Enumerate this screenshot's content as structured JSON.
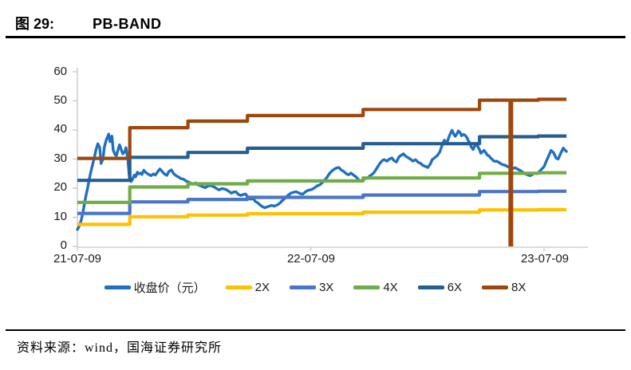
{
  "header": {
    "figure_label": "图 29:",
    "title": "PB-BAND"
  },
  "source": {
    "text": "资料来源：wind，国海证券研究所"
  },
  "chart_data": {
    "type": "line",
    "title": "PB-BAND",
    "grid": false,
    "legend_position": "bottom",
    "x_axis": {
      "unit": "days_since_first_tick",
      "tick_labels": [
        "21-07-09",
        "22-07-09",
        "23-07-09"
      ],
      "tick_days": [
        0,
        365,
        730
      ],
      "range_days": [
        0,
        799
      ]
    },
    "y_axis": {
      "ticks": [
        0,
        10,
        20,
        30,
        40,
        50,
        60
      ],
      "range": [
        0,
        60
      ]
    },
    "series": [
      {
        "name": "收盘价（元）",
        "color": "#1F70C1",
        "width": 3.4,
        "points": [
          [
            0,
            5.8
          ],
          [
            3,
            7.0
          ],
          [
            6,
            9.0
          ],
          [
            9,
            12.0
          ],
          [
            13,
            17.0
          ],
          [
            16,
            20.0
          ],
          [
            19,
            23.5
          ],
          [
            22,
            26.5
          ],
          [
            26,
            30.0
          ],
          [
            29,
            33.0
          ],
          [
            32,
            35.3
          ],
          [
            35,
            34.0
          ],
          [
            37,
            28.5
          ],
          [
            40,
            30.0
          ],
          [
            42,
            34.0
          ],
          [
            45,
            36.5
          ],
          [
            49,
            38.6
          ],
          [
            51,
            36.0
          ],
          [
            54,
            37.9
          ],
          [
            56,
            33.1
          ],
          [
            59,
            31.5
          ],
          [
            61,
            31.2
          ],
          [
            64,
            33.5
          ],
          [
            66,
            34.9
          ],
          [
            69,
            33.0
          ],
          [
            71,
            31.8
          ],
          [
            74,
            32.5
          ],
          [
            76,
            33.9
          ],
          [
            79,
            29.9
          ],
          [
            81,
            24.5
          ],
          [
            84,
            22.3
          ],
          [
            86,
            22.9
          ],
          [
            89,
            24.5
          ],
          [
            91,
            23.9
          ],
          [
            94,
            25.5
          ],
          [
            96,
            24.9
          ],
          [
            99,
            25.2
          ],
          [
            101,
            24.7
          ],
          [
            104,
            26.2
          ],
          [
            107,
            25.4
          ],
          [
            111,
            24.8
          ],
          [
            115,
            24.3
          ],
          [
            119,
            24.9
          ],
          [
            122,
            24.5
          ],
          [
            126,
            25.8
          ],
          [
            129,
            26.6
          ],
          [
            132,
            25.9
          ],
          [
            136,
            24.9
          ],
          [
            140,
            24.4
          ],
          [
            143,
            25.7
          ],
          [
            147,
            26.3
          ],
          [
            151,
            24.9
          ],
          [
            155,
            24.2
          ],
          [
            158,
            23.9
          ],
          [
            162,
            23.3
          ],
          [
            166,
            23.1
          ],
          [
            170,
            22.5
          ],
          [
            173,
            22.2
          ],
          [
            177,
            21.8
          ],
          [
            181,
            21.4
          ],
          [
            185,
            21.8
          ],
          [
            188,
            21.2
          ],
          [
            192,
            20.9
          ],
          [
            196,
            20.5
          ],
          [
            200,
            20.2
          ],
          [
            203,
            20.6
          ],
          [
            207,
            20.9
          ],
          [
            211,
            20.7
          ],
          [
            215,
            20.3
          ],
          [
            218,
            19.8
          ],
          [
            222,
            19.4
          ],
          [
            226,
            19.9
          ],
          [
            230,
            19.7
          ],
          [
            233,
            19.5
          ],
          [
            237,
            18.9
          ],
          [
            241,
            18.3
          ],
          [
            245,
            18.7
          ],
          [
            248,
            18.8
          ],
          [
            252,
            17.8
          ],
          [
            256,
            17.5
          ],
          [
            260,
            17.9
          ],
          [
            263,
            18.0
          ],
          [
            267,
            16.8
          ],
          [
            271,
            16.2
          ],
          [
            275,
            16.6
          ],
          [
            278,
            15.5
          ],
          [
            282,
            15.0
          ],
          [
            286,
            14.2
          ],
          [
            290,
            13.6
          ],
          [
            293,
            13.3
          ],
          [
            297,
            13.6
          ],
          [
            301,
            13.9
          ],
          [
            304,
            14.1
          ],
          [
            308,
            13.8
          ],
          [
            312,
            14.2
          ],
          [
            316,
            14.7
          ],
          [
            319,
            15.4
          ],
          [
            323,
            16.2
          ],
          [
            327,
            17.1
          ],
          [
            331,
            17.8
          ],
          [
            334,
            18.3
          ],
          [
            338,
            18.6
          ],
          [
            342,
            18.8
          ],
          [
            346,
            18.4
          ],
          [
            349,
            18.1
          ],
          [
            353,
            18.0
          ],
          [
            357,
            18.8
          ],
          [
            361,
            19.3
          ],
          [
            364,
            19.4
          ],
          [
            368,
            19.7
          ],
          [
            372,
            20.3
          ],
          [
            376,
            20.9
          ],
          [
            379,
            21.1
          ],
          [
            383,
            21.9
          ],
          [
            387,
            22.8
          ],
          [
            391,
            23.9
          ],
          [
            394,
            25.0
          ],
          [
            398,
            25.9
          ],
          [
            402,
            26.6
          ],
          [
            406,
            27.0
          ],
          [
            409,
            27.1
          ],
          [
            413,
            26.2
          ],
          [
            417,
            25.7
          ],
          [
            421,
            24.9
          ],
          [
            424,
            24.6
          ],
          [
            428,
            25.2
          ],
          [
            432,
            24.5
          ],
          [
            436,
            23.9
          ],
          [
            439,
            23.1
          ],
          [
            443,
            22.4
          ],
          [
            447,
            23.0
          ],
          [
            450,
            23.3
          ],
          [
            454,
            23.5
          ],
          [
            458,
            24.3
          ],
          [
            462,
            24.9
          ],
          [
            465,
            25.7
          ],
          [
            469,
            27.1
          ],
          [
            473,
            28.5
          ],
          [
            477,
            29.5
          ],
          [
            480,
            29.8
          ],
          [
            484,
            29.3
          ],
          [
            488,
            30.0
          ],
          [
            492,
            30.4
          ],
          [
            495,
            29.5
          ],
          [
            499,
            29.0
          ],
          [
            503,
            30.7
          ],
          [
            507,
            31.4
          ],
          [
            510,
            31.8
          ],
          [
            514,
            30.9
          ],
          [
            518,
            30.4
          ],
          [
            522,
            29.8
          ],
          [
            525,
            29.3
          ],
          [
            529,
            29.8
          ],
          [
            533,
            28.9
          ],
          [
            537,
            28.5
          ],
          [
            540,
            27.9
          ],
          [
            544,
            27.5
          ],
          [
            548,
            27.1
          ],
          [
            552,
            28.3
          ],
          [
            555,
            29.8
          ],
          [
            559,
            30.5
          ],
          [
            563,
            31.2
          ],
          [
            567,
            32.5
          ],
          [
            570,
            34.5
          ],
          [
            574,
            36.5
          ],
          [
            578,
            35.5
          ],
          [
            581,
            37.5
          ],
          [
            584,
            39.0
          ],
          [
            586,
            39.9
          ],
          [
            589,
            38.5
          ],
          [
            591,
            37.8
          ],
          [
            594,
            38.8
          ],
          [
            596,
            39.7
          ],
          [
            599,
            39.0
          ],
          [
            601,
            38.0
          ],
          [
            604,
            38.5
          ],
          [
            606,
            38.3
          ],
          [
            609,
            37.5
          ],
          [
            611,
            36.5
          ],
          [
            614,
            35.5
          ],
          [
            616,
            34.2
          ],
          [
            619,
            33.3
          ],
          [
            621,
            34.3
          ],
          [
            624,
            35.1
          ],
          [
            626,
            34.5
          ],
          [
            629,
            33.2
          ],
          [
            631,
            32.0
          ],
          [
            634,
            32.6
          ],
          [
            636,
            33.0
          ],
          [
            639,
            32.2
          ],
          [
            641,
            31.4
          ],
          [
            644,
            31.1
          ],
          [
            646,
            30.5
          ],
          [
            649,
            29.9
          ],
          [
            651,
            29.4
          ],
          [
            654,
            29.2
          ],
          [
            656,
            29.3
          ],
          [
            659,
            28.9
          ],
          [
            664,
            28.2
          ],
          [
            669,
            27.9
          ],
          [
            674,
            27.3
          ],
          [
            678,
            27.1
          ],
          [
            681,
            26.8
          ],
          [
            685,
            27.0
          ],
          [
            689,
            26.5
          ],
          [
            692,
            26.2
          ],
          [
            696,
            25.6
          ],
          [
            700,
            25.0
          ],
          [
            704,
            24.6
          ],
          [
            708,
            24.3
          ],
          [
            711,
            24.6
          ],
          [
            715,
            25.2
          ],
          [
            719,
            25.0
          ],
          [
            722,
            25.6
          ],
          [
            726,
            26.5
          ],
          [
            730,
            27.4
          ],
          [
            734,
            29.5
          ],
          [
            738,
            31.5
          ],
          [
            741,
            33.0
          ],
          [
            745,
            32.2
          ],
          [
            749,
            30.3
          ],
          [
            752,
            30.0
          ],
          [
            756,
            32.0
          ],
          [
            760,
            33.8
          ],
          [
            762,
            33.2
          ],
          [
            765,
            32.6
          ]
        ]
      },
      {
        "name": "2X",
        "color": "#FFC000",
        "width": 4.2,
        "end_day": 765,
        "steps": [
          [
            0,
            7.56
          ],
          [
            82,
            10.2
          ],
          [
            173,
            10.76
          ],
          [
            266,
            11.24
          ],
          [
            447,
            11.76
          ],
          [
            629,
            12.56
          ],
          [
            721,
            12.64
          ]
        ]
      },
      {
        "name": "3X",
        "color": "#4D75C6",
        "width": 4.2,
        "end_day": 765,
        "steps": [
          [
            0,
            11.34
          ],
          [
            82,
            15.3
          ],
          [
            173,
            16.14
          ],
          [
            266,
            16.86
          ],
          [
            447,
            17.64
          ],
          [
            629,
            18.84
          ],
          [
            721,
            18.96
          ]
        ]
      },
      {
        "name": "4X",
        "color": "#70AD47",
        "width": 4.2,
        "end_day": 765,
        "steps": [
          [
            0,
            15.12
          ],
          [
            82,
            20.4
          ],
          [
            173,
            21.52
          ],
          [
            266,
            22.48
          ],
          [
            447,
            23.52
          ],
          [
            629,
            25.12
          ],
          [
            721,
            25.28
          ]
        ]
      },
      {
        "name": "6X",
        "color": "#255E91",
        "width": 4.2,
        "end_day": 765,
        "steps": [
          [
            0,
            22.68
          ],
          [
            82,
            30.6
          ],
          [
            173,
            32.28
          ],
          [
            266,
            33.72
          ],
          [
            447,
            35.28
          ],
          [
            629,
            37.68
          ],
          [
            721,
            37.92
          ]
        ]
      },
      {
        "name": "8X",
        "color": "#9E480E",
        "width": 4.2,
        "end_day": 765,
        "steps": [
          [
            0,
            30.24
          ],
          [
            82,
            40.8
          ],
          [
            173,
            43.04
          ],
          [
            266,
            44.96
          ],
          [
            447,
            47.04
          ],
          [
            629,
            50.24
          ],
          [
            721,
            50.56
          ]
        ]
      }
    ],
    "annotations": [
      {
        "type": "vline",
        "day": 678,
        "from": 0,
        "to": 50.4,
        "color": "#9E480E",
        "width": 6
      }
    ]
  }
}
